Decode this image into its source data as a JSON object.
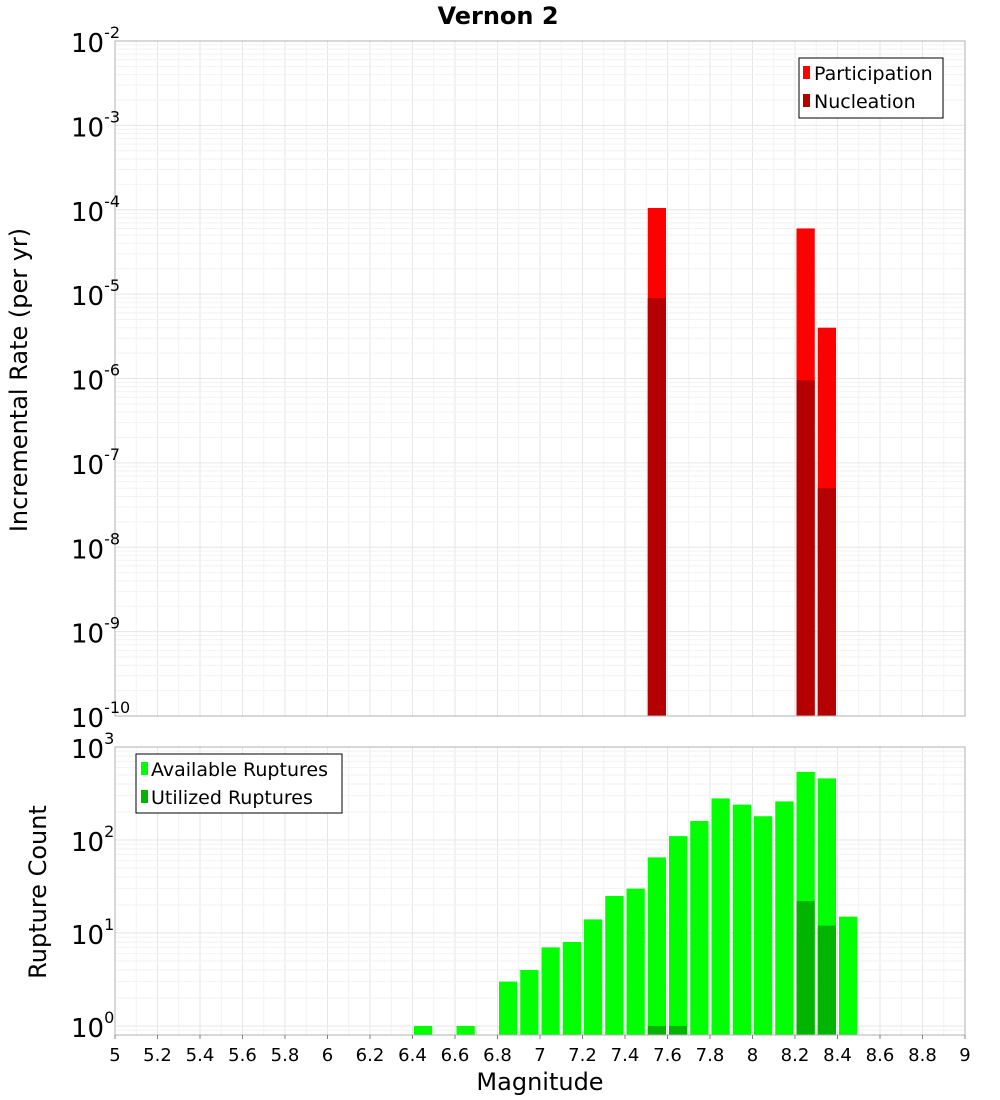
{
  "chart_data": [
    {
      "type": "bar",
      "title": "Vernon 2",
      "xlabel": "",
      "ylabel": "Incremental Rate (per yr)",
      "yscale": "log",
      "ylim": [
        1e-10,
        0.01
      ],
      "xlim": [
        5,
        9
      ],
      "ytick_labels": [
        {
          "base": "10",
          "exp": "-10"
        },
        {
          "base": "10",
          "exp": "-9"
        },
        {
          "base": "10",
          "exp": "-8"
        },
        {
          "base": "10",
          "exp": "-7"
        },
        {
          "base": "10",
          "exp": "-6"
        },
        {
          "base": "10",
          "exp": "-5"
        },
        {
          "base": "10",
          "exp": "-4"
        },
        {
          "base": "10",
          "exp": "-3"
        },
        {
          "base": "10",
          "exp": "-2"
        }
      ],
      "legend_position": "top-right",
      "series": [
        {
          "name": "Participation",
          "color": "#ff0000",
          "x": [
            7.55,
            8.25,
            8.35
          ],
          "values": [
            0.000105,
            6e-05,
            4e-06
          ]
        },
        {
          "name": "Nucleation",
          "color": "#b40000",
          "x": [
            7.55,
            8.25,
            8.35
          ],
          "values": [
            9e-06,
            9.5e-07,
            5e-08
          ]
        }
      ]
    },
    {
      "type": "bar",
      "title": "",
      "xlabel": "Magnitude",
      "ylabel": "Rupture Count",
      "yscale": "log",
      "ylim": [
        0.8,
        1000
      ],
      "xlim": [
        5,
        9
      ],
      "ytick_labels": [
        {
          "base": "10",
          "exp": "0"
        },
        {
          "base": "10",
          "exp": "1"
        },
        {
          "base": "10",
          "exp": "2"
        },
        {
          "base": "10",
          "exp": "3"
        }
      ],
      "xtick_labels": [
        "5",
        "5.2",
        "5.4",
        "5.6",
        "5.8",
        "6",
        "6.2",
        "6.4",
        "6.6",
        "6.8",
        "7",
        "7.2",
        "7.4",
        "7.6",
        "7.8",
        "8",
        "8.2",
        "8.4",
        "8.6",
        "8.8",
        "9"
      ],
      "legend_position": "top-left",
      "series": [
        {
          "name": "Available Ruptures",
          "color": "#00ff00",
          "x": [
            6.45,
            6.65,
            6.85,
            6.95,
            7.05,
            7.15,
            7.25,
            7.35,
            7.45,
            7.55,
            7.65,
            7.75,
            7.85,
            7.95,
            8.05,
            8.15,
            8.25,
            8.35,
            8.45
          ],
          "values": [
            1,
            1,
            3,
            4,
            7,
            8,
            14,
            25,
            30,
            65,
            110,
            160,
            280,
            240,
            180,
            260,
            540,
            460,
            15
          ]
        },
        {
          "name": "Utilized Ruptures",
          "color": "#00b400",
          "x": [
            7.55,
            7.65,
            8.25,
            8.35
          ],
          "values": [
            1,
            1,
            22,
            12
          ]
        }
      ]
    }
  ]
}
